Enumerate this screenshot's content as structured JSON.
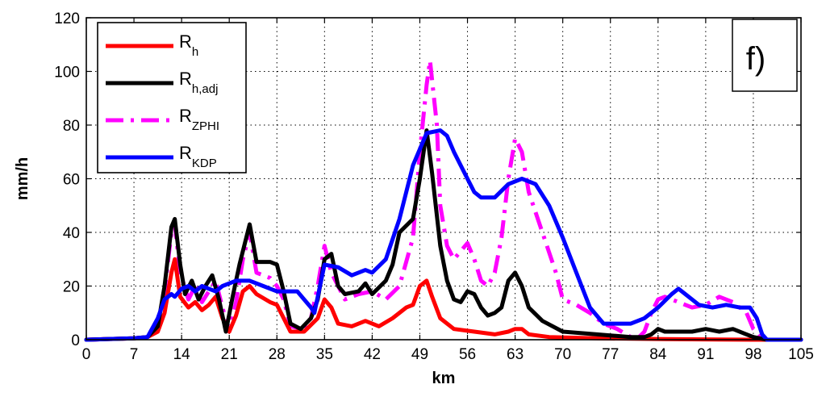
{
  "chart_data": {
    "type": "line",
    "title": "",
    "panel_label": "f)",
    "xlabel": "km",
    "ylabel": "mm/h",
    "xlim": [
      0,
      105
    ],
    "ylim": [
      0,
      120
    ],
    "xticks": [
      0,
      7,
      14,
      21,
      28,
      35,
      42,
      49,
      56,
      63,
      70,
      77,
      84,
      91,
      98,
      105
    ],
    "yticks": [
      0,
      20,
      40,
      60,
      80,
      100,
      120
    ],
    "grid": true,
    "legend_position": "top-left",
    "series": [
      {
        "name": "R",
        "subscript": "h",
        "color": "#ff0000",
        "style": "solid",
        "points": [
          [
            0,
            0
          ],
          [
            7,
            0.5
          ],
          [
            9,
            1
          ],
          [
            10.5,
            3
          ],
          [
            11.5,
            10
          ],
          [
            12.5,
            25
          ],
          [
            13,
            30
          ],
          [
            13.8,
            16
          ],
          [
            15,
            12
          ],
          [
            16,
            14
          ],
          [
            17,
            11
          ],
          [
            18,
            13
          ],
          [
            19,
            16
          ],
          [
            20,
            8
          ],
          [
            21,
            3
          ],
          [
            22,
            9
          ],
          [
            23,
            18
          ],
          [
            24,
            20
          ],
          [
            25,
            17
          ],
          [
            27,
            14
          ],
          [
            28,
            13
          ],
          [
            29,
            8
          ],
          [
            30,
            3
          ],
          [
            32,
            3
          ],
          [
            34,
            8
          ],
          [
            35,
            15
          ],
          [
            36,
            12
          ],
          [
            37,
            6
          ],
          [
            39,
            5
          ],
          [
            41,
            7
          ],
          [
            43,
            5
          ],
          [
            45,
            8
          ],
          [
            47,
            12
          ],
          [
            48,
            13
          ],
          [
            49,
            20
          ],
          [
            50,
            22
          ],
          [
            50.8,
            16
          ],
          [
            52,
            8
          ],
          [
            54,
            4
          ],
          [
            57,
            3
          ],
          [
            60,
            2
          ],
          [
            62,
            3
          ],
          [
            63,
            4
          ],
          [
            64,
            4
          ],
          [
            65,
            2
          ],
          [
            68,
            1
          ],
          [
            75,
            0.5
          ],
          [
            85,
            0.2
          ],
          [
            98,
            0
          ],
          [
            105,
            0
          ]
        ]
      },
      {
        "name": "R",
        "subscript": "h,adj",
        "color": "#000000",
        "style": "solid",
        "points": [
          [
            0,
            0
          ],
          [
            7,
            0.5
          ],
          [
            9,
            1
          ],
          [
            10.5,
            5
          ],
          [
            11.5,
            20
          ],
          [
            12.5,
            42
          ],
          [
            13,
            45
          ],
          [
            13.8,
            28
          ],
          [
            14.5,
            17
          ],
          [
            15.5,
            22
          ],
          [
            16.5,
            15
          ],
          [
            17.5,
            20
          ],
          [
            18.5,
            24
          ],
          [
            19.5,
            15
          ],
          [
            20.5,
            3
          ],
          [
            21.5,
            16
          ],
          [
            22.5,
            28
          ],
          [
            23.5,
            38
          ],
          [
            24,
            43
          ],
          [
            25,
            29
          ],
          [
            27,
            29
          ],
          [
            28,
            28
          ],
          [
            29,
            18
          ],
          [
            30,
            6
          ],
          [
            31.5,
            4
          ],
          [
            33,
            8
          ],
          [
            34,
            15
          ],
          [
            35,
            30
          ],
          [
            36,
            32
          ],
          [
            37,
            20
          ],
          [
            38,
            17
          ],
          [
            40,
            18
          ],
          [
            41,
            21
          ],
          [
            42,
            17
          ],
          [
            44,
            22
          ],
          [
            45,
            28
          ],
          [
            46,
            40
          ],
          [
            48,
            45
          ],
          [
            49,
            60
          ],
          [
            50,
            78
          ],
          [
            50.8,
            62
          ],
          [
            52,
            35
          ],
          [
            53,
            22
          ],
          [
            54,
            15
          ],
          [
            55,
            14
          ],
          [
            56,
            18
          ],
          [
            57,
            17
          ],
          [
            58,
            12
          ],
          [
            59,
            9
          ],
          [
            60,
            10
          ],
          [
            61,
            12
          ],
          [
            62,
            22
          ],
          [
            63,
            25
          ],
          [
            64,
            20
          ],
          [
            65,
            12
          ],
          [
            67,
            7
          ],
          [
            70,
            3
          ],
          [
            75,
            2
          ],
          [
            80,
            1
          ],
          [
            82,
            1
          ],
          [
            83,
            2
          ],
          [
            84,
            4
          ],
          [
            85,
            3
          ],
          [
            87,
            3
          ],
          [
            89,
            3
          ],
          [
            91,
            4
          ],
          [
            93,
            3
          ],
          [
            95,
            4
          ],
          [
            97,
            2
          ],
          [
            98,
            1
          ],
          [
            100,
            0
          ],
          [
            105,
            0
          ]
        ]
      },
      {
        "name": "R",
        "subscript": "ZPHI",
        "color": "#ff00ff",
        "style": "dashdot",
        "points": [
          [
            0,
            0
          ],
          [
            7,
            0.5
          ],
          [
            9,
            1
          ],
          [
            10.5,
            4
          ],
          [
            11.5,
            18
          ],
          [
            12.5,
            40
          ],
          [
            13,
            43
          ],
          [
            13.8,
            25
          ],
          [
            15,
            15
          ],
          [
            16,
            20
          ],
          [
            17,
            14
          ],
          [
            18,
            18
          ],
          [
            19,
            22
          ],
          [
            20,
            12
          ],
          [
            21,
            3
          ],
          [
            22,
            14
          ],
          [
            23,
            30
          ],
          [
            24,
            40
          ],
          [
            25,
            25
          ],
          [
            27,
            23
          ],
          [
            28,
            20
          ],
          [
            29,
            15
          ],
          [
            30,
            5
          ],
          [
            32,
            4
          ],
          [
            33,
            8
          ],
          [
            34,
            20
          ],
          [
            35,
            35
          ],
          [
            36,
            25
          ],
          [
            37,
            20
          ],
          [
            38,
            15
          ],
          [
            40,
            17
          ],
          [
            42,
            18
          ],
          [
            44,
            15
          ],
          [
            46,
            20
          ],
          [
            48,
            38
          ],
          [
            49,
            70
          ],
          [
            50,
            95
          ],
          [
            50.5,
            104
          ],
          [
            51.5,
            80
          ],
          [
            52,
            50
          ],
          [
            53,
            35
          ],
          [
            54,
            30
          ],
          [
            55,
            33
          ],
          [
            56,
            36
          ],
          [
            57,
            30
          ],
          [
            58,
            22
          ],
          [
            59,
            20
          ],
          [
            60,
            25
          ],
          [
            61,
            38
          ],
          [
            62,
            60
          ],
          [
            63,
            75
          ],
          [
            64,
            70
          ],
          [
            65,
            55
          ],
          [
            67,
            40
          ],
          [
            69,
            25
          ],
          [
            70,
            15
          ],
          [
            72,
            13
          ],
          [
            74,
            10
          ],
          [
            76,
            6
          ],
          [
            78,
            4
          ],
          [
            80,
            1
          ],
          [
            81,
            0.5
          ],
          [
            82,
            3
          ],
          [
            83,
            10
          ],
          [
            84,
            15
          ],
          [
            85,
            16
          ],
          [
            87,
            14
          ],
          [
            89,
            12
          ],
          [
            91,
            13
          ],
          [
            93,
            16
          ],
          [
            95,
            14
          ],
          [
            97,
            10
          ],
          [
            98,
            4
          ],
          [
            99,
            1
          ],
          [
            100,
            0
          ],
          [
            105,
            0
          ]
        ]
      },
      {
        "name": "R",
        "subscript": "KDP",
        "color": "#0000ff",
        "style": "solid",
        "points": [
          [
            0,
            0
          ],
          [
            7,
            0.5
          ],
          [
            9,
            1
          ],
          [
            10.5,
            8
          ],
          [
            11.5,
            15
          ],
          [
            12.5,
            17
          ],
          [
            13,
            16
          ],
          [
            14,
            19
          ],
          [
            15,
            20
          ],
          [
            16,
            18
          ],
          [
            17,
            20
          ],
          [
            19,
            18
          ],
          [
            20,
            20
          ],
          [
            22,
            22
          ],
          [
            24,
            22
          ],
          [
            26,
            20
          ],
          [
            28,
            18
          ],
          [
            31,
            18
          ],
          [
            33,
            12
          ],
          [
            33.5,
            10
          ],
          [
            35,
            28
          ],
          [
            37,
            27
          ],
          [
            39,
            24
          ],
          [
            41,
            26
          ],
          [
            42,
            25
          ],
          [
            44,
            30
          ],
          [
            46,
            45
          ],
          [
            48,
            65
          ],
          [
            50,
            77
          ],
          [
            52,
            78
          ],
          [
            53,
            76
          ],
          [
            54,
            70
          ],
          [
            55,
            65
          ],
          [
            56,
            60
          ],
          [
            57,
            55
          ],
          [
            58,
            53
          ],
          [
            60,
            53
          ],
          [
            62,
            58
          ],
          [
            64,
            60
          ],
          [
            66,
            58
          ],
          [
            68,
            50
          ],
          [
            70,
            38
          ],
          [
            72,
            25
          ],
          [
            74,
            12
          ],
          [
            76,
            6
          ],
          [
            78,
            6
          ],
          [
            80,
            6
          ],
          [
            82,
            8
          ],
          [
            84,
            12
          ],
          [
            86,
            17
          ],
          [
            87,
            19
          ],
          [
            88,
            17
          ],
          [
            90,
            13
          ],
          [
            92,
            12
          ],
          [
            94,
            13
          ],
          [
            96,
            12
          ],
          [
            97.5,
            12
          ],
          [
            98.5,
            8
          ],
          [
            99.3,
            2
          ],
          [
            100,
            0
          ],
          [
            105,
            0
          ]
        ]
      }
    ]
  }
}
